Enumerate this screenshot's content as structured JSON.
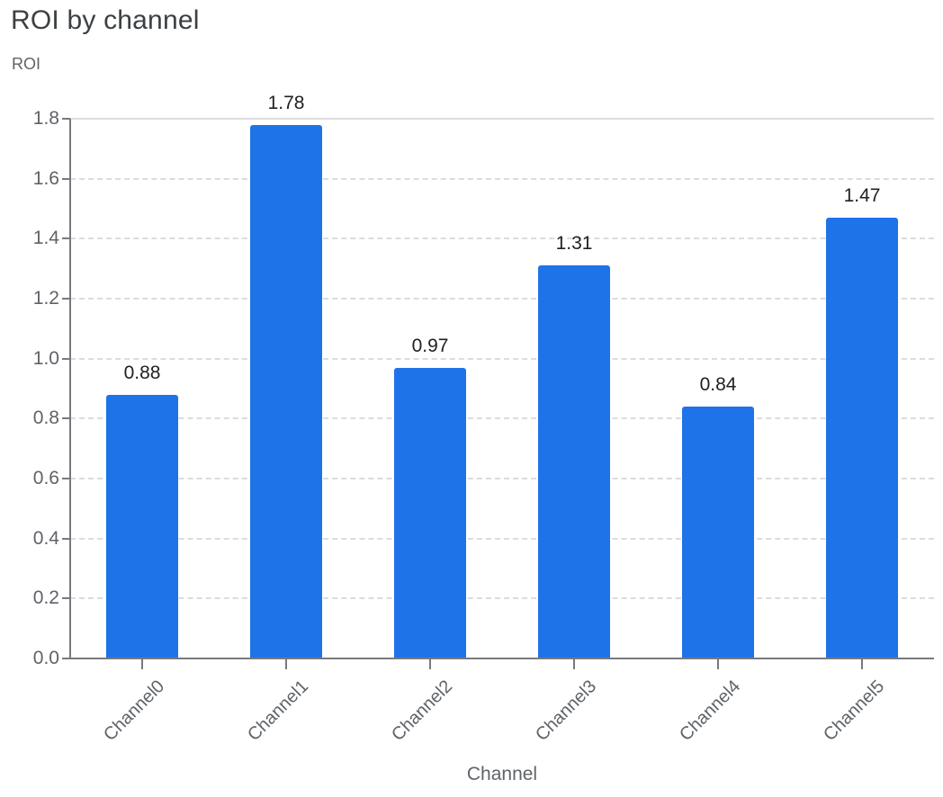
{
  "header": {
    "title": "ROI by channel"
  },
  "chart_data": {
    "type": "bar",
    "title": "ROI by channel",
    "categories": [
      "Channel0",
      "Channel1",
      "Channel2",
      "Channel3",
      "Channel4",
      "Channel5"
    ],
    "values": [
      0.88,
      1.78,
      0.97,
      1.31,
      0.84,
      1.47
    ],
    "data_labels": [
      "0.88",
      "1.78",
      "0.97",
      "1.31",
      "0.84",
      "1.47"
    ],
    "xlabel": "Channel",
    "ylabel": "ROI",
    "ylim": [
      0,
      1.8
    ],
    "ytick_step": 0.2,
    "yticks": [
      "0.0",
      "0.2",
      "0.4",
      "0.6",
      "0.8",
      "1.0",
      "1.2",
      "1.4",
      "1.6",
      "1.8"
    ],
    "grid": "horizontal-dashed, solid line at max, legend none",
    "legend": "none",
    "colors": {
      "bar": "#1e73e8",
      "title": "#3c4043",
      "axis_title": "#5f6368",
      "tick_label": "#5f6368",
      "data_label": "#202124",
      "axis_line": "#767a7e",
      "gridline": "#dadce0"
    }
  }
}
